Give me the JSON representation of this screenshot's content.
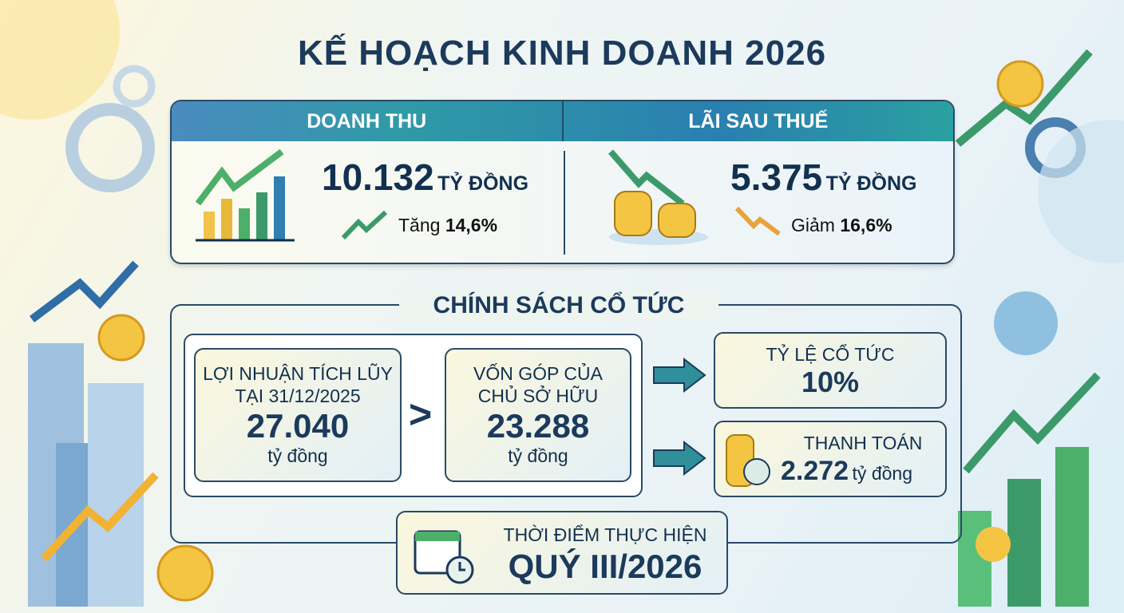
{
  "title": "KẾ HOẠCH KINH DOANH 2026",
  "revenue": {
    "header": "DOANH THU",
    "value": "10.132",
    "unit": "TỶ ĐỒNG",
    "change_label": "Tăng",
    "change_value": "14,6%"
  },
  "profit": {
    "header": "LÃI SAU THUẾ",
    "value": "5.375",
    "unit": "TỶ ĐỒNG",
    "change_label": "Giảm",
    "change_value": "16,6%"
  },
  "dividend": {
    "title": "CHÍNH SÁCH CỔ TỨC",
    "retained": {
      "label1": "LỢI NHUẬN TÍCH LŨY",
      "label2": "TẠI 31/12/2025",
      "value": "27.040",
      "unit": "tỷ đồng"
    },
    "comparison": ">",
    "equity": {
      "label1": "VỐN GÓP CỦA",
      "label2": "CHỦ SỞ HỮU",
      "value": "23.288",
      "unit": "tỷ đồng"
    },
    "rate": {
      "label": "TỶ LỆ CỔ TỨC",
      "value": "10%"
    },
    "payment": {
      "label": "THANH TOÁN",
      "value": "2.272",
      "unit": "tỷ đồng"
    },
    "timing": {
      "label": "THỜI ĐIỂM THỰC HIỆN",
      "value": "QUÝ III/2026"
    }
  },
  "colors": {
    "navy": "#1b3a5c",
    "teal": "#2f9aa6",
    "green": "#4caf6a",
    "gold": "#f2b233",
    "up": "#3c9a6a",
    "down": "#e8a33a"
  }
}
